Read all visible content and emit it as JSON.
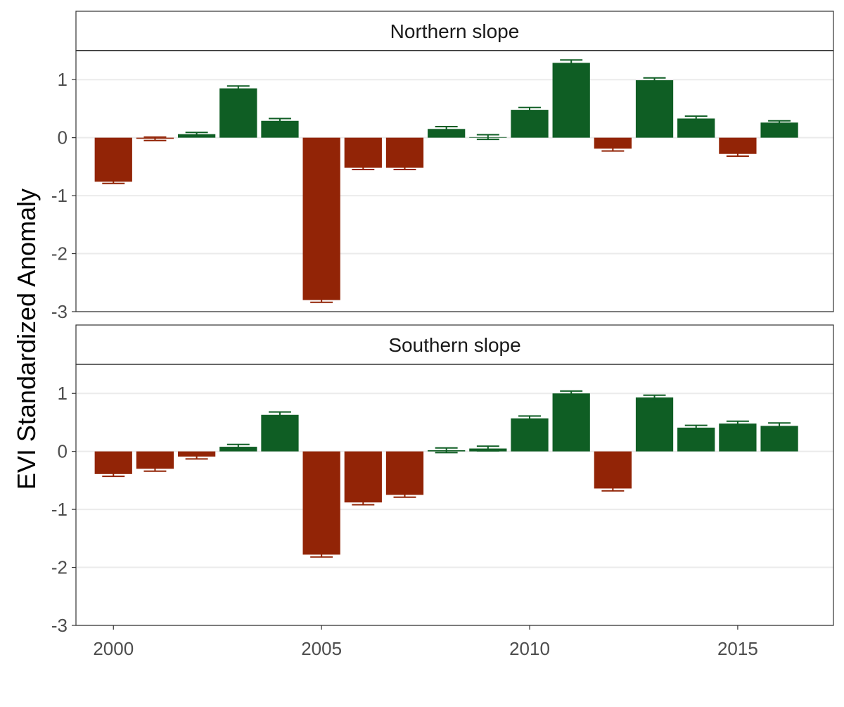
{
  "figure": {
    "ylabel": "EVI Standardized Anomaly",
    "colors": {
      "positive": "#0f5e24",
      "negative": "#922406",
      "grid": "#ebebeb",
      "panel_border": "#333333",
      "tick_text": "#4d4d4d"
    }
  },
  "chart_data": {
    "type": "bar",
    "facet_layout": "stacked-vertical",
    "shared_x_axis": true,
    "grid": true,
    "ylabel": "EVI Standardized Anomaly",
    "xlabel": "",
    "ylim": [
      -3,
      1.5
    ],
    "yticks": [
      -3,
      -2,
      -1,
      0,
      1
    ],
    "xlim": [
      1999.1,
      2017.3
    ],
    "xticks": [
      2000,
      2005,
      2010,
      2015
    ],
    "x": [
      2000,
      2001,
      2002,
      2003,
      2004,
      2005,
      2006,
      2007,
      2008,
      2009,
      2010,
      2011,
      2012,
      2013,
      2014,
      2015,
      2016
    ],
    "panels": [
      {
        "title": "Northern slope",
        "values": [
          -0.76,
          -0.02,
          0.06,
          0.85,
          0.29,
          -2.8,
          -0.52,
          -0.52,
          0.15,
          0.01,
          0.48,
          1.29,
          -0.19,
          0.99,
          0.33,
          -0.28,
          0.26
        ],
        "error": [
          0.03,
          0.03,
          0.03,
          0.04,
          0.04,
          0.04,
          0.03,
          0.03,
          0.04,
          0.04,
          0.04,
          0.05,
          0.04,
          0.04,
          0.04,
          0.04,
          0.03
        ]
      },
      {
        "title": "Southern slope",
        "values": [
          -0.39,
          -0.3,
          -0.09,
          0.08,
          0.63,
          -1.78,
          -0.88,
          -0.75,
          0.02,
          0.05,
          0.57,
          1.0,
          -0.64,
          0.93,
          0.41,
          0.48,
          0.44
        ],
        "error": [
          0.04,
          0.04,
          0.04,
          0.04,
          0.05,
          0.04,
          0.04,
          0.04,
          0.04,
          0.04,
          0.04,
          0.04,
          0.04,
          0.04,
          0.04,
          0.04,
          0.05
        ]
      }
    ]
  }
}
